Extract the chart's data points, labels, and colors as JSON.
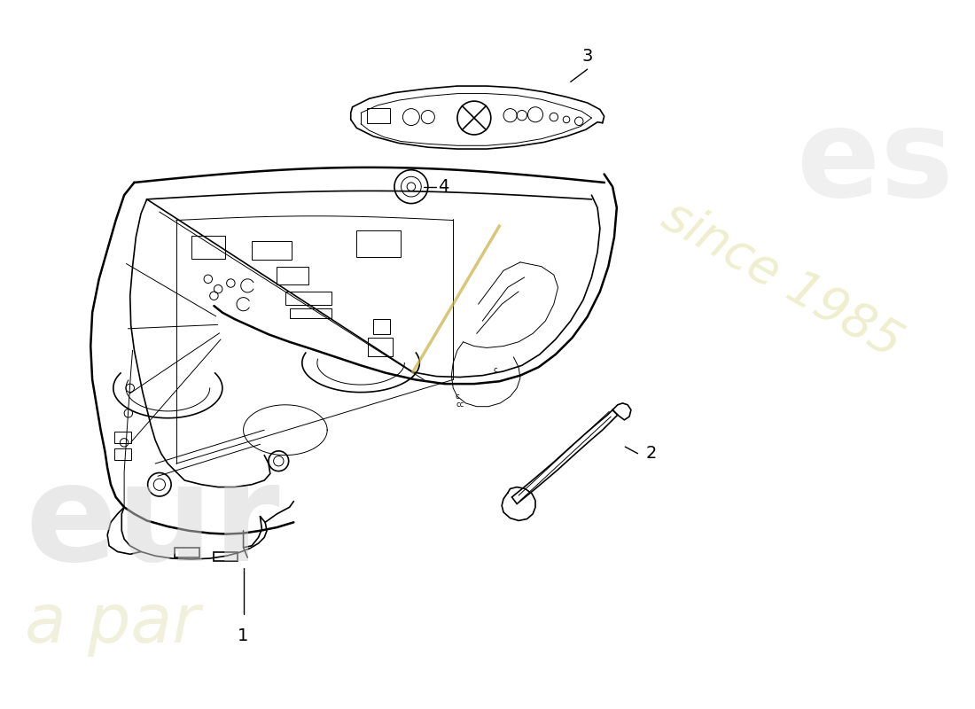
{
  "background_color": "#ffffff",
  "line_color": "#000000",
  "lw_main": 1.8,
  "lw_med": 1.2,
  "lw_thin": 0.7,
  "watermark_gray": "#cccccc",
  "watermark_yellow": "#e8e8b0",
  "part1_label": "1",
  "part2_label": "2",
  "part3_label": "3",
  "part4_label": "4"
}
